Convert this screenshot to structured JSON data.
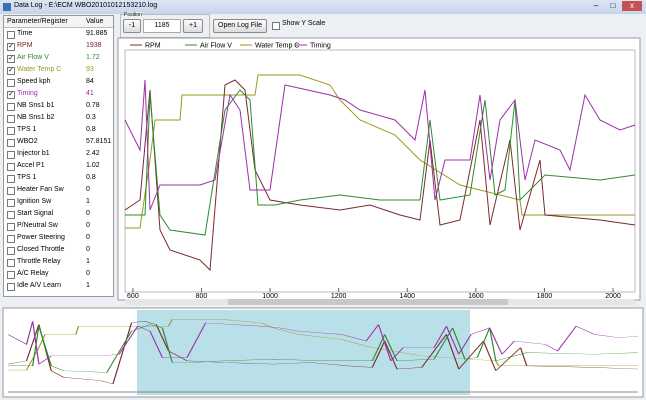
{
  "window": {
    "title": "Data Log - E:\\ECM WBO20101012153210.log"
  },
  "table": {
    "headers": [
      "Parameter/Register",
      "Value"
    ],
    "rows": [
      {
        "name": "Time",
        "value": "91.885",
        "checked": false
      },
      {
        "name": "RPM",
        "value": "1938",
        "checked": true,
        "color": "#7a2a2a"
      },
      {
        "name": "Air Flow V",
        "value": "1.72",
        "checked": true,
        "color": "#2e8b2e"
      },
      {
        "name": "Water Temp C",
        "value": "93",
        "checked": true,
        "color": "#9a9a20"
      },
      {
        "name": "Speed kph",
        "value": "84",
        "checked": false
      },
      {
        "name": "Timing",
        "value": "41",
        "checked": true,
        "color": "#9b30a8"
      },
      {
        "name": "NB Sns1 b1",
        "value": "0.78",
        "checked": false
      },
      {
        "name": "NB Sns1 b2",
        "value": "0.3",
        "checked": false
      },
      {
        "name": "TPS 1",
        "value": "0.8",
        "checked": false
      },
      {
        "name": "WBO2",
        "value": "57.8151",
        "checked": false
      },
      {
        "name": "Injector b1",
        "value": "2.42",
        "checked": false
      },
      {
        "name": "Accel P1",
        "value": "1.02",
        "checked": false
      },
      {
        "name": "TPS 1",
        "value": "0.8",
        "checked": false
      },
      {
        "name": "Heater Fan Sw",
        "value": "0",
        "checked": false
      },
      {
        "name": "Ignition Sw",
        "value": "1",
        "checked": false
      },
      {
        "name": "Start Signal",
        "value": "0",
        "checked": false
      },
      {
        "name": "P/Neutral Sw",
        "value": "0",
        "checked": false
      },
      {
        "name": "Power Steering",
        "value": "0",
        "checked": false
      },
      {
        "name": "Closed Throttle",
        "value": "0",
        "checked": false
      },
      {
        "name": "Throttle Relay",
        "value": "1",
        "checked": false
      },
      {
        "name": "A/C Relay",
        "value": "0",
        "checked": false
      },
      {
        "name": "Idle A/V Learn",
        "value": "1",
        "checked": false
      }
    ]
  },
  "toolbar": {
    "group_label": "Position",
    "minus": "-1",
    "position": "1185",
    "plus": "+1",
    "open": "Open Log File",
    "show_y_scale": "Show Y Scale"
  },
  "plot": {
    "legend": [
      {
        "name": "RPM",
        "color": "#7a2a2a"
      },
      {
        "name": "Air Flow V",
        "color": "#2e8b2e"
      },
      {
        "name": "Water Temp C",
        "color": "#9a9a20"
      },
      {
        "name": "Timing",
        "color": "#9b30a8"
      }
    ],
    "xlim": [
      577,
      2064
    ],
    "xticks": [
      600,
      800,
      1000,
      1200,
      1400,
      1600,
      1800,
      2000
    ]
  }
}
